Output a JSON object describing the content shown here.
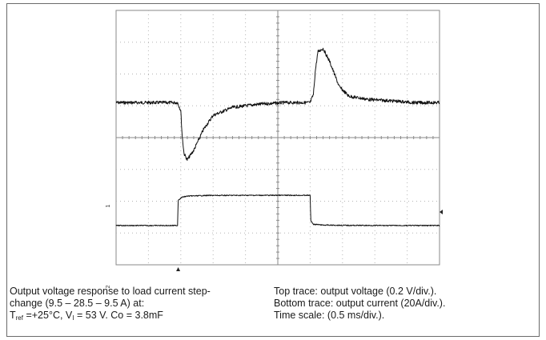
{
  "chart_data": {
    "type": "line",
    "title": "",
    "grid": true,
    "axes": {
      "x_divisions": 10,
      "y_divisions": 8
    },
    "x_scale": "0.5 ms/div",
    "series": [
      {
        "name": "Top trace: output voltage",
        "channel_marker": "1",
        "scale": "0.2 V/div",
        "x": [
          0,
          0.5,
          0.95,
          1.0,
          1.02,
          1.05,
          1.1,
          1.2,
          1.35,
          1.5,
          1.8,
          2.2,
          2.6,
          3.0,
          3.05,
          3.08,
          3.12,
          3.2,
          3.3,
          3.45,
          3.6,
          3.9,
          4.3,
          4.6,
          5.0
        ],
        "y": [
          0,
          0,
          0,
          -0.05,
          -0.2,
          -0.32,
          -0.36,
          -0.3,
          -0.17,
          -0.08,
          -0.03,
          -0.01,
          0,
          0,
          0.05,
          0.2,
          0.32,
          0.34,
          0.26,
          0.1,
          0.04,
          0.02,
          0.01,
          0,
          0
        ]
      },
      {
        "name": "Bottom trace: output current",
        "channel_marker": "2",
        "scale": "20 A/div",
        "x": [
          0,
          0.5,
          0.95,
          0.96,
          1.02,
          1.1,
          1.4,
          2.0,
          2.5,
          3.0,
          3.01,
          3.05,
          3.2,
          3.6,
          4.2,
          4.6,
          5.0
        ],
        "y": [
          9.5,
          9.5,
          9.5,
          25.5,
          27.3,
          28.0,
          28.4,
          28.5,
          28.5,
          28.5,
          12.5,
          10.3,
          9.8,
          9.6,
          9.5,
          9.5,
          9.5
        ]
      }
    ]
  },
  "caption": {
    "left_line1": "Output voltage response to load current step-",
    "left_line2": "change (9.5 – 28.5 – 9.5 A) at:",
    "left_line3_t": "T",
    "left_line3_tsub": "ref",
    "left_line3_mid": " =+25°C, V",
    "left_line3_vsub": "I",
    "left_line3_end": " = 53 V. Co = 3.8mF",
    "right_line1": "Top trace: output voltage (0.2 V/div.).",
    "right_line2": "Bottom trace: output current (20A/div.).",
    "right_line3": "Time scale: (0.5 ms/div.)."
  }
}
